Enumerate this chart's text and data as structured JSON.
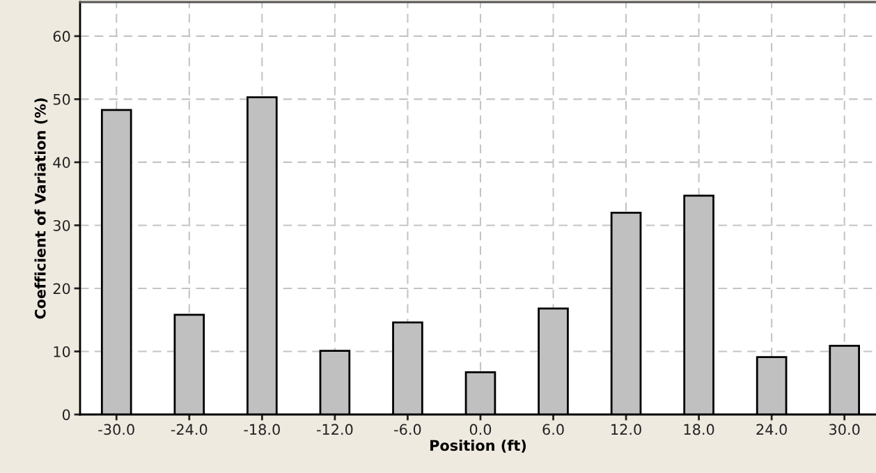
{
  "chart_data": {
    "type": "bar",
    "xlabel": "Position (ft)",
    "ylabel": "Coefficient of Variation (%)",
    "x": [
      -30,
      -24,
      -18,
      -12,
      -6,
      0,
      6,
      12,
      18,
      24,
      30
    ],
    "values": [
      48.3,
      15.8,
      50.3,
      10.1,
      14.6,
      6.7,
      16.8,
      32.0,
      34.7,
      9.1,
      10.9
    ],
    "color": "#c0c0c0",
    "xlim": [
      -33.0,
      32.6
    ],
    "ylim": [
      0,
      65.4
    ],
    "xticks": [
      {
        "value": -30,
        "label": "-30.0"
      },
      {
        "value": -24,
        "label": "-24.0"
      },
      {
        "value": -18,
        "label": "-18.0"
      },
      {
        "value": -12,
        "label": "-12.0"
      },
      {
        "value": -6,
        "label": "-6.0"
      },
      {
        "value": 0,
        "label": "0.0"
      },
      {
        "value": 6,
        "label": "6.0"
      },
      {
        "value": 12,
        "label": "12.0"
      },
      {
        "value": 18,
        "label": "18.0"
      },
      {
        "value": 24,
        "label": "24.0"
      },
      {
        "value": 30,
        "label": "30.0"
      }
    ],
    "yticks": [
      0,
      10,
      20,
      30,
      40,
      50,
      60
    ],
    "grid": true
  }
}
